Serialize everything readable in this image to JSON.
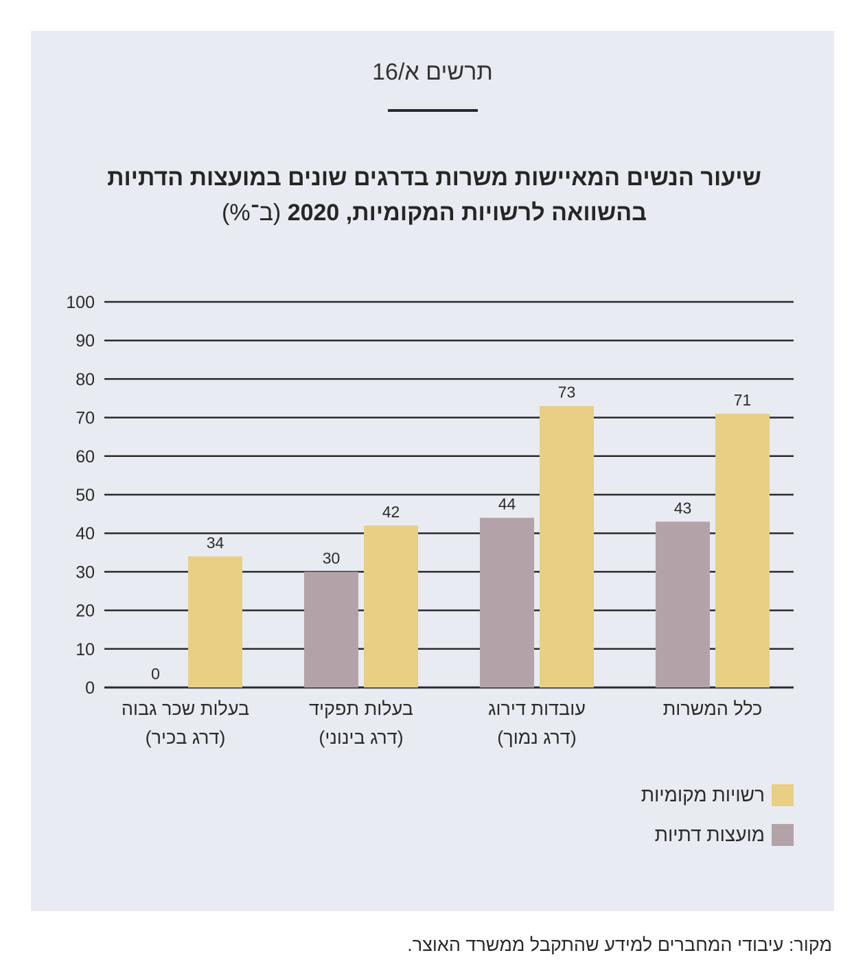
{
  "figure_label": "תרשים א/16",
  "title_line1": "שיעור הנשים המאיישות משרות בדרגים שונים במועצות הדתיות",
  "title_line2": "בהשוואה לרשויות המקומיות, 2020",
  "title_unit": "(ב־%)",
  "source": "מקור: עיבודי המחברים למידע שהתקבל ממשרד האוצר.",
  "colors": {
    "panel": "#e8ebf1",
    "religious_councils": "#b3a3a8",
    "local_authorities": "#e8cf84",
    "gridline": "#2a2a2a"
  },
  "chart_data": {
    "type": "bar",
    "direction": "rtl",
    "categories": [
      [
        "כלל המשרות",
        ""
      ],
      [
        "עובדות דירוג",
        "(דרג נמוך)"
      ],
      [
        "בעלות תפקיד",
        "(דרג בינוני)"
      ],
      [
        "בעלות שכר גבוה",
        "(דרג בכיר)"
      ]
    ],
    "series": [
      {
        "name": "מועצות דתיות",
        "color": "#b3a3a8",
        "values": [
          43,
          44,
          30,
          0
        ]
      },
      {
        "name": "רשויות מקומיות",
        "color": "#e8cf84",
        "values": [
          71,
          73,
          42,
          34
        ]
      }
    ],
    "ylim": [
      0,
      100
    ],
    "yticks": [
      0,
      10,
      20,
      30,
      40,
      50,
      60,
      70,
      80,
      90,
      100
    ],
    "grid": true,
    "legend": [
      {
        "name": "רשויות מקומיות",
        "color": "#e8cf84"
      },
      {
        "name": "מועצות דתיות",
        "color": "#b3a3a8"
      }
    ],
    "legend_position": "bottom-right"
  }
}
